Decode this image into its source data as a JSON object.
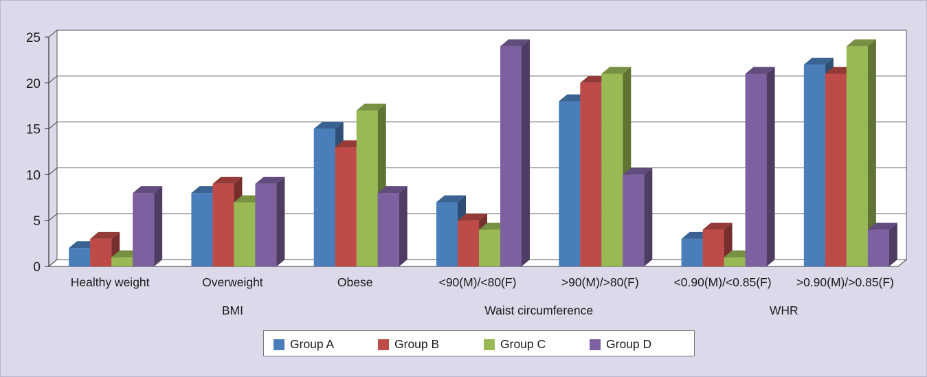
{
  "chart_data": {
    "type": "bar",
    "categories": [
      "Healthy weight",
      "Overweight",
      "Obese",
      "<90(M)/<80(F)",
      ">90(M)/>80(F)",
      "<0.90(M)/<0.85(F)",
      ">0.90(M)/>0.85(F)"
    ],
    "category_groups": [
      {
        "label": "BMI",
        "categories": [
          "Healthy weight",
          "Overweight",
          "Obese"
        ]
      },
      {
        "label": "Waist circumference",
        "categories": [
          "<90(M)/<80(F)",
          ">90(M)/>80(F)"
        ]
      },
      {
        "label": "WHR",
        "categories": [
          "<0.90(M)/<0.85(F)",
          ">0.90(M)/>0.85(F)"
        ]
      }
    ],
    "series": [
      {
        "name": "Group A",
        "color": "#4a7ebb",
        "values": [
          2,
          8,
          15,
          7,
          18,
          3,
          22
        ]
      },
      {
        "name": "Group B",
        "color": "#be4b48",
        "values": [
          3,
          9,
          13,
          5,
          20,
          4,
          21
        ]
      },
      {
        "name": "Group C",
        "color": "#98b954",
        "values": [
          1,
          7,
          17,
          4,
          21,
          1,
          24
        ]
      },
      {
        "name": "Group D",
        "color": "#7d60a0",
        "values": [
          8,
          9,
          8,
          24,
          10,
          21,
          4
        ]
      }
    ],
    "yticks": [
      "0",
      "5",
      "10",
      "15",
      "20",
      "25"
    ],
    "ylim": [
      0,
      25
    ],
    "grid": true,
    "legend_position": "bottom",
    "style": "3d-clustered-column"
  }
}
